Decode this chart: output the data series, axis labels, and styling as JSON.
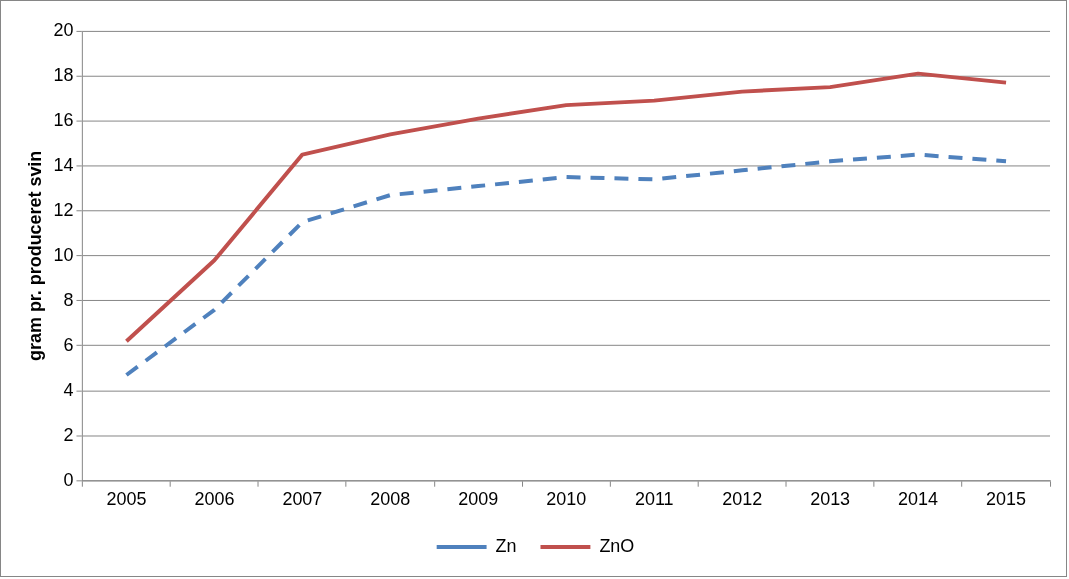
{
  "chart_data": {
    "type": "line",
    "ylabel": "gram pr. produceret svin",
    "categories": [
      "2005",
      "2006",
      "2007",
      "2008",
      "2009",
      "2010",
      "2011",
      "2012",
      "2013",
      "2014",
      "2015"
    ],
    "series": [
      {
        "name": "Zn",
        "color": "#4f81bd",
        "line_style": "dashed",
        "values": [
          4.7,
          7.6,
          11.5,
          12.7,
          13.1,
          13.5,
          13.4,
          13.8,
          14.2,
          14.5,
          14.2
        ]
      },
      {
        "name": "ZnO",
        "color": "#c0504d",
        "line_style": "solid",
        "values": [
          6.2,
          9.8,
          14.5,
          15.4,
          16.1,
          16.7,
          16.9,
          17.3,
          17.5,
          18.1,
          17.7
        ]
      }
    ],
    "ylim": [
      0,
      20
    ],
    "yticks": [
      0,
      2,
      4,
      6,
      8,
      10,
      12,
      14,
      16,
      18,
      20
    ],
    "grid": "y",
    "legend": "bottom",
    "marker": "none"
  }
}
